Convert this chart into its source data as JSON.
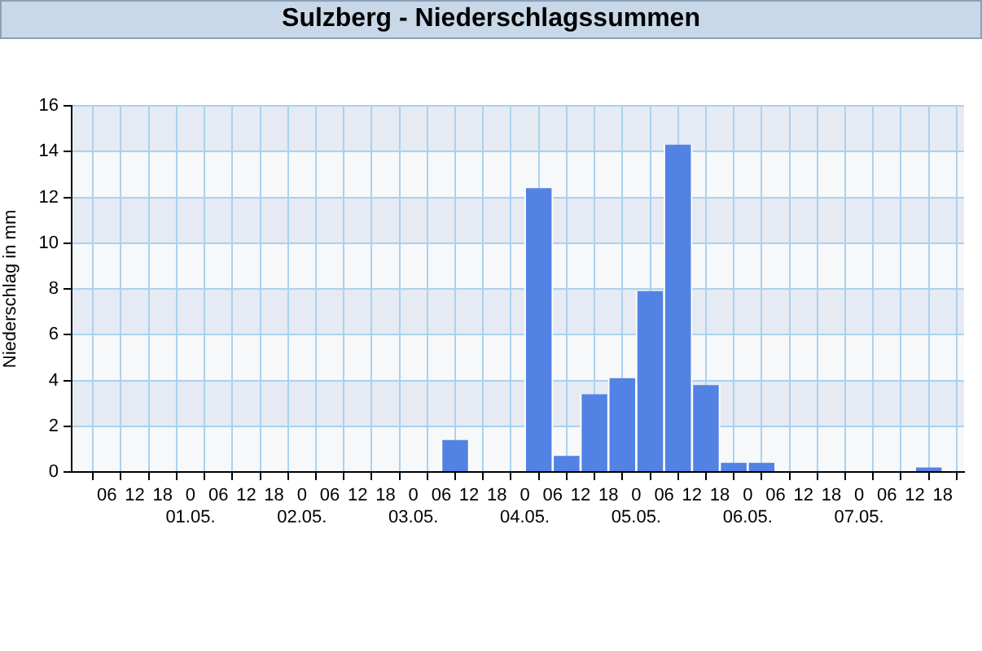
{
  "chart_data": {
    "type": "bar",
    "title": "Sulzberg - Niederschlagssummen",
    "ylabel": "Niederschlag in mm",
    "x": [
      "--04-30T09:00",
      "--04-30T15:00",
      "--04-30T21:00",
      "--05-01T03:00",
      "--05-01T09:00",
      "--05-01T15:00",
      "--05-01T21:00",
      "--05-02T03:00",
      "--05-02T09:00",
      "--05-02T15:00",
      "--05-02T21:00",
      "--05-03T03:00",
      "--05-03T09:00",
      "--05-03T15:00",
      "--05-03T21:00",
      "--05-04T03:00",
      "--05-04T09:00",
      "--05-04T15:00",
      "--05-04T21:00",
      "--05-05T03:00",
      "--05-05T09:00",
      "--05-05T15:00",
      "--05-05T21:00",
      "--05-06T03:00",
      "--05-06T09:00",
      "--05-06T15:00",
      "--05-06T21:00",
      "--05-07T03:00",
      "--05-07T09:00",
      "--05-07T15:00"
    ],
    "values": [
      0,
      0,
      0,
      0,
      0,
      0,
      0,
      0,
      0,
      0,
      0,
      0,
      1.4,
      0,
      0,
      12.4,
      0.7,
      3.4,
      4.1,
      7.9,
      14.3,
      3.8,
      0.4,
      0.4,
      0,
      0,
      0,
      0,
      0,
      0.2
    ],
    "color": "#5282e3",
    "xlim": [
      "--04-30T01:30",
      "--05-07T19:30"
    ],
    "xticks": [
      {
        "value": "--04-30T06:00",
        "label": "06"
      },
      {
        "value": "--04-30T12:00",
        "label": "12"
      },
      {
        "value": "--04-30T18:00",
        "label": "18"
      },
      {
        "value": "--05-01T00:00",
        "label": "0\n01.05."
      },
      {
        "value": "--05-01T06:00",
        "label": "06"
      },
      {
        "value": "--05-01T12:00",
        "label": "12"
      },
      {
        "value": "--05-01T18:00",
        "label": "18"
      },
      {
        "value": "--05-02T00:00",
        "label": "0\n02.05."
      },
      {
        "value": "--05-02T06:00",
        "label": "06"
      },
      {
        "value": "--05-02T12:00",
        "label": "12"
      },
      {
        "value": "--05-02T18:00",
        "label": "18"
      },
      {
        "value": "--05-03T00:00",
        "label": "0\n03.05."
      },
      {
        "value": "--05-03T06:00",
        "label": "06"
      },
      {
        "value": "--05-03T12:00",
        "label": "12"
      },
      {
        "value": "--05-03T18:00",
        "label": "18"
      },
      {
        "value": "--05-04T00:00",
        "label": "0\n04.05."
      },
      {
        "value": "--05-04T06:00",
        "label": "06"
      },
      {
        "value": "--05-04T12:00",
        "label": "12"
      },
      {
        "value": "--05-04T18:00",
        "label": "18"
      },
      {
        "value": "--05-05T00:00",
        "label": "0\n05.05."
      },
      {
        "value": "--05-05T06:00",
        "label": "06"
      },
      {
        "value": "--05-05T12:00",
        "label": "12"
      },
      {
        "value": "--05-05T18:00",
        "label": "18"
      },
      {
        "value": "--05-06T00:00",
        "label": "0\n06.05."
      },
      {
        "value": "--05-06T06:00",
        "label": "06"
      },
      {
        "value": "--05-06T12:00",
        "label": "12"
      },
      {
        "value": "--05-06T18:00",
        "label": "18"
      },
      {
        "value": "--05-07T00:00",
        "label": "0\n07.05."
      },
      {
        "value": "--05-07T06:00",
        "label": "06"
      },
      {
        "value": "--05-07T12:00",
        "label": "12"
      },
      {
        "value": "--05-07T18:00",
        "label": "18"
      }
    ],
    "ylim": [
      0,
      16
    ],
    "yticks": [
      0,
      2,
      4,
      6,
      8,
      10,
      12,
      14,
      16
    ],
    "grid": true,
    "legend": false
  }
}
